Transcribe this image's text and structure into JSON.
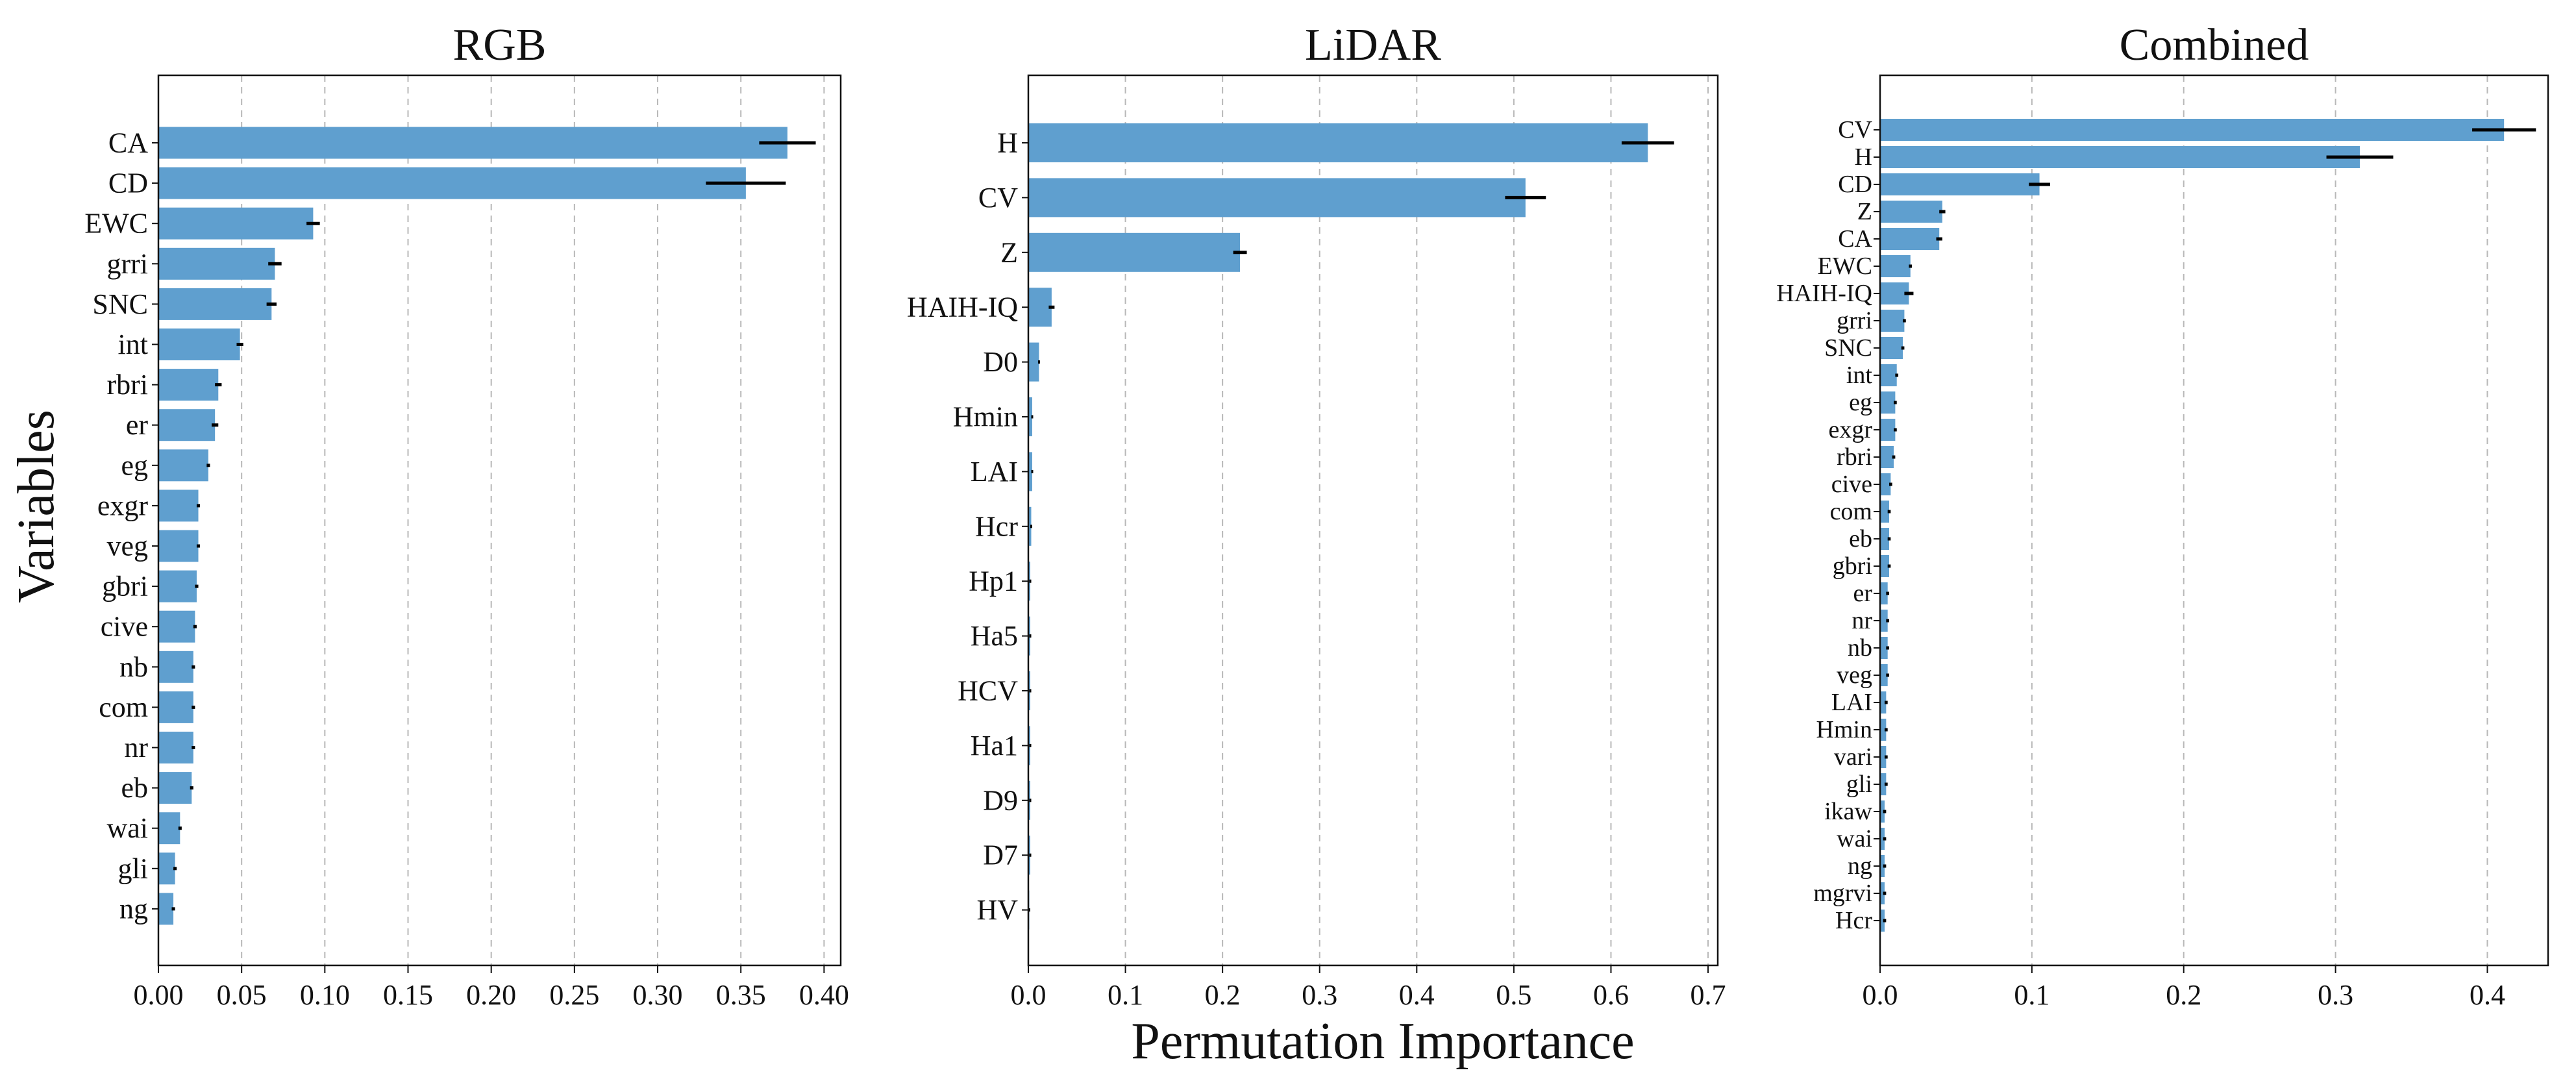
{
  "figure": {
    "ylabel": "Variables",
    "xlabel": "Permutation Importance",
    "bar_color": "#5f9fcf",
    "err_color": "#000000",
    "grid_color": "#b8b8b8"
  },
  "chart_data": [
    {
      "type": "bar",
      "orientation": "horizontal",
      "title": "RGB",
      "xlim": [
        0,
        0.41
      ],
      "xticks": [
        "0.00",
        "0.05",
        "0.10",
        "0.15",
        "0.20",
        "0.25",
        "0.30",
        "0.35",
        "0.40"
      ],
      "xtick_values": [
        0,
        0.05,
        0.1,
        0.15,
        0.2,
        0.25,
        0.3,
        0.35,
        0.4
      ],
      "categories": [
        "CA",
        "CD",
        "EWC",
        "grri",
        "SNC",
        "int",
        "rbri",
        "er",
        "eg",
        "exgr",
        "veg",
        "gbri",
        "cive",
        "nb",
        "com",
        "nr",
        "eb",
        "wai",
        "gli",
        "ng"
      ],
      "values": [
        0.378,
        0.353,
        0.093,
        0.07,
        0.068,
        0.049,
        0.036,
        0.034,
        0.03,
        0.024,
        0.024,
        0.023,
        0.022,
        0.021,
        0.021,
        0.021,
        0.02,
        0.013,
        0.01,
        0.009
      ],
      "errors": [
        0.017,
        0.024,
        0.004,
        0.004,
        0.003,
        0.002,
        0.002,
        0.002,
        0.001,
        0.001,
        0.001,
        0.001,
        0.001,
        0.001,
        0.001,
        0.001,
        0.001,
        0.001,
        0.001,
        0.001
      ],
      "grid": "vertical dashed"
    },
    {
      "type": "bar",
      "orientation": "horizontal",
      "title": "LiDAR",
      "xlim": [
        0,
        0.71
      ],
      "xticks": [
        "0.0",
        "0.1",
        "0.2",
        "0.3",
        "0.4",
        "0.5",
        "0.6",
        "0.7"
      ],
      "xtick_values": [
        0,
        0.1,
        0.2,
        0.3,
        0.4,
        0.5,
        0.6,
        0.7
      ],
      "categories": [
        "H",
        "CV",
        "Z",
        "HAIH-IQ",
        "D0",
        "Hmin",
        "LAI",
        "Hcr",
        "Hp1",
        "Ha5",
        "HCV",
        "Ha1",
        "D9",
        "D7",
        "HV"
      ],
      "values": [
        0.638,
        0.512,
        0.218,
        0.024,
        0.011,
        0.004,
        0.004,
        0.003,
        0.002,
        0.002,
        0.002,
        0.002,
        0.002,
        0.002,
        0.001
      ],
      "errors": [
        0.027,
        0.021,
        0.007,
        0.003,
        0.001,
        0.001,
        0.001,
        0.001,
        0.001,
        0.001,
        0.001,
        0.001,
        0.001,
        0.001,
        0.001
      ],
      "grid": "vertical dashed"
    },
    {
      "type": "bar",
      "orientation": "horizontal",
      "title": "Combined",
      "xlim": [
        0,
        0.44
      ],
      "xticks": [
        "0.0",
        "0.1",
        "0.2",
        "0.3",
        "0.4"
      ],
      "xtick_values": [
        0,
        0.1,
        0.2,
        0.3,
        0.4
      ],
      "categories": [
        "CV",
        "H",
        "CD",
        "Z",
        "CA",
        "EWC",
        "HAIH-IQ",
        "grri",
        "SNC",
        "int",
        "eg",
        "exgr",
        "rbri",
        "cive",
        "com",
        "eb",
        "gbri",
        "er",
        "nr",
        "nb",
        "veg",
        "LAI",
        "Hmin",
        "vari",
        "gli",
        "ikaw",
        "wai",
        "ng",
        "mgrvi",
        "Hcr"
      ],
      "values": [
        0.411,
        0.316,
        0.105,
        0.041,
        0.039,
        0.02,
        0.019,
        0.016,
        0.015,
        0.011,
        0.01,
        0.01,
        0.009,
        0.007,
        0.006,
        0.006,
        0.006,
        0.005,
        0.005,
        0.005,
        0.005,
        0.004,
        0.004,
        0.004,
        0.004,
        0.003,
        0.003,
        0.003,
        0.003,
        0.003
      ],
      "errors": [
        0.021,
        0.022,
        0.007,
        0.002,
        0.002,
        0.001,
        0.003,
        0.001,
        0.001,
        0.001,
        0.001,
        0.001,
        0.001,
        0.001,
        0.001,
        0.001,
        0.001,
        0.001,
        0.001,
        0.001,
        0.001,
        0.001,
        0.001,
        0.001,
        0.001,
        0.001,
        0.001,
        0.001,
        0.001,
        0.001
      ],
      "grid": "vertical dashed"
    }
  ]
}
